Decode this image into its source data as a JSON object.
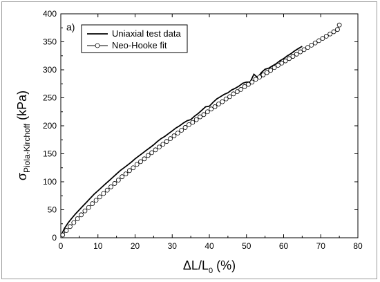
{
  "chart_data": {
    "type": "line",
    "panel_label": "a)",
    "xlabel": {
      "prefix": "ΔL/L",
      "subscript": "0",
      "suffix": " (%)"
    },
    "ylabel": {
      "prefix": "σ",
      "subscript": "Piola-Kirchoff",
      "suffix": " (kPa)"
    },
    "xlim": [
      0,
      80
    ],
    "ylim": [
      0,
      400
    ],
    "xticks": [
      0,
      10,
      20,
      30,
      40,
      50,
      60,
      70,
      80
    ],
    "yticks": [
      0,
      50,
      100,
      150,
      200,
      250,
      300,
      350,
      400
    ],
    "grid": false,
    "legend_position": "top-left",
    "series": [
      {
        "name": "Uniaxial test data",
        "style": "line",
        "color": "#000000",
        "x": [
          0,
          0.5,
          1,
          2,
          3,
          4,
          5,
          6,
          7,
          8,
          9,
          10,
          11,
          12,
          13,
          14,
          15,
          16,
          17,
          18,
          19,
          20,
          21,
          22,
          23,
          24,
          25,
          26,
          27,
          28,
          29,
          30,
          31,
          32,
          33,
          34,
          35,
          36,
          37,
          38,
          39,
          40,
          41,
          42,
          43,
          44,
          45,
          46,
          47,
          48,
          49,
          50,
          51,
          52,
          53,
          54,
          55,
          56,
          57,
          58,
          59,
          60,
          61,
          62,
          63,
          64,
          65
        ],
        "y": [
          3,
          10,
          17,
          27,
          35,
          43,
          50,
          57,
          64,
          71,
          78,
          84,
          90,
          96,
          102,
          108,
          114,
          120,
          125,
          130,
          135,
          141,
          146,
          151,
          156,
          161,
          166,
          172,
          177,
          181,
          186,
          191,
          196,
          200,
          205,
          209,
          211,
          217,
          222,
          228,
          234,
          235,
          242,
          248,
          252,
          256,
          259,
          264,
          267,
          271,
          276,
          278,
          278,
          292,
          286,
          295,
          301,
          303,
          307,
          311,
          316,
          320,
          325,
          329,
          334,
          338,
          342
        ]
      },
      {
        "name": "Neo-Hooke fit",
        "style": "line-circle",
        "color": "#000000",
        "x": [
          0.5,
          1.5,
          2.5,
          3.5,
          4.5,
          5.5,
          6.5,
          7.5,
          8.5,
          9.5,
          10.5,
          11.5,
          12.5,
          13.5,
          14.5,
          15.5,
          16.5,
          17.5,
          18.5,
          19.5,
          20.5,
          21.5,
          22.5,
          23.5,
          24.5,
          25.5,
          26.5,
          27.5,
          28.5,
          29.5,
          30.5,
          31.5,
          32.5,
          33.5,
          34.5,
          35.5,
          36.5,
          37.5,
          38.5,
          39.5,
          40.5,
          41.5,
          42.5,
          43.5,
          44.5,
          45.5,
          46.5,
          47.5,
          48.5,
          49.5,
          50.5,
          51.5,
          52.5,
          53.5,
          54.5,
          55.5,
          56.5,
          57.5,
          58.5,
          59.5,
          60.5,
          61.5,
          62.5,
          63.5,
          64.5,
          65.5,
          66.5,
          67.5,
          68.5,
          69.5,
          70.5,
          71.5,
          72.5,
          73.5,
          74.5,
          75
        ],
        "y": [
          5,
          13,
          20,
          27,
          34,
          41,
          48,
          54,
          61,
          67,
          73,
          79,
          85,
          91,
          97,
          103,
          109,
          114,
          120,
          125,
          131,
          136,
          141,
          147,
          152,
          157,
          162,
          167,
          172,
          177,
          182,
          187,
          192,
          197,
          202,
          206,
          211,
          216,
          220,
          225,
          230,
          234,
          239,
          243,
          248,
          252,
          257,
          261,
          265,
          270,
          274,
          278,
          283,
          287,
          291,
          295,
          299,
          304,
          308,
          312,
          316,
          320,
          324,
          328,
          332,
          336,
          340,
          344,
          348,
          352,
          356,
          360,
          364,
          368,
          372,
          380
        ]
      }
    ]
  }
}
